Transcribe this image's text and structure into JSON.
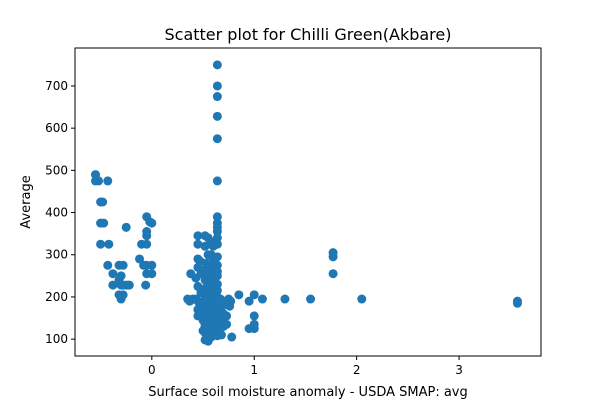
{
  "chart_data": {
    "type": "scatter",
    "title": "Scatter plot for Chilli Green(Akbare)",
    "xlabel": "Surface soil moisture anomaly  - USDA SMAP: avg",
    "ylabel": "Average",
    "xlim": [
      -0.75,
      3.8
    ],
    "ylim": [
      60,
      790
    ],
    "xticks": [
      0,
      1,
      2,
      3
    ],
    "yticks": [
      100,
      200,
      300,
      400,
      500,
      600,
      700
    ],
    "grid": false,
    "color": "#1f77b4",
    "points": [
      {
        "x": -0.55,
        "y": 490
      },
      {
        "x": -0.55,
        "y": 475
      },
      {
        "x": -0.52,
        "y": 475
      },
      {
        "x": -0.43,
        "y": 475
      },
      {
        "x": -0.5,
        "y": 425
      },
      {
        "x": -0.48,
        "y": 425
      },
      {
        "x": -0.5,
        "y": 375
      },
      {
        "x": -0.47,
        "y": 375
      },
      {
        "x": -0.5,
        "y": 325
      },
      {
        "x": -0.42,
        "y": 325
      },
      {
        "x": -0.43,
        "y": 275
      },
      {
        "x": -0.38,
        "y": 255
      },
      {
        "x": -0.38,
        "y": 228
      },
      {
        "x": -0.3,
        "y": 228
      },
      {
        "x": -0.32,
        "y": 275
      },
      {
        "x": -0.28,
        "y": 275
      },
      {
        "x": -0.3,
        "y": 250
      },
      {
        "x": -0.32,
        "y": 240
      },
      {
        "x": -0.28,
        "y": 228
      },
      {
        "x": -0.25,
        "y": 228
      },
      {
        "x": -0.32,
        "y": 205
      },
      {
        "x": -0.3,
        "y": 195
      },
      {
        "x": -0.28,
        "y": 205
      },
      {
        "x": -0.25,
        "y": 365
      },
      {
        "x": -0.22,
        "y": 228
      },
      {
        "x": -0.12,
        "y": 290
      },
      {
        "x": -0.1,
        "y": 325
      },
      {
        "x": -0.05,
        "y": 325
      },
      {
        "x": -0.05,
        "y": 390
      },
      {
        "x": -0.02,
        "y": 378
      },
      {
        "x": 0.0,
        "y": 375
      },
      {
        "x": -0.05,
        "y": 355
      },
      {
        "x": -0.05,
        "y": 345
      },
      {
        "x": -0.08,
        "y": 275
      },
      {
        "x": -0.05,
        "y": 275
      },
      {
        "x": 0.0,
        "y": 275
      },
      {
        "x": -0.05,
        "y": 255
      },
      {
        "x": 0.0,
        "y": 255
      },
      {
        "x": -0.06,
        "y": 228
      },
      {
        "x": 0.35,
        "y": 195
      },
      {
        "x": 0.37,
        "y": 190
      },
      {
        "x": 0.4,
        "y": 195
      },
      {
        "x": 0.43,
        "y": 195
      },
      {
        "x": 0.38,
        "y": 255
      },
      {
        "x": 0.43,
        "y": 245
      },
      {
        "x": 0.45,
        "y": 345
      },
      {
        "x": 0.45,
        "y": 325
      },
      {
        "x": 0.45,
        "y": 290
      },
      {
        "x": 0.47,
        "y": 285
      },
      {
        "x": 0.45,
        "y": 270
      },
      {
        "x": 0.48,
        "y": 255
      },
      {
        "x": 0.45,
        "y": 225
      },
      {
        "x": 0.48,
        "y": 210
      },
      {
        "x": 0.45,
        "y": 190
      },
      {
        "x": 0.47,
        "y": 180
      },
      {
        "x": 0.45,
        "y": 170
      },
      {
        "x": 0.48,
        "y": 158
      },
      {
        "x": 0.45,
        "y": 155
      },
      {
        "x": 0.5,
        "y": 145
      },
      {
        "x": 0.52,
        "y": 130
      },
      {
        "x": 0.5,
        "y": 120
      },
      {
        "x": 0.52,
        "y": 345
      },
      {
        "x": 0.55,
        "y": 340
      },
      {
        "x": 0.52,
        "y": 320
      },
      {
        "x": 0.55,
        "y": 300
      },
      {
        "x": 0.53,
        "y": 280
      },
      {
        "x": 0.52,
        "y": 265
      },
      {
        "x": 0.55,
        "y": 255
      },
      {
        "x": 0.52,
        "y": 240
      },
      {
        "x": 0.55,
        "y": 230
      },
      {
        "x": 0.52,
        "y": 220
      },
      {
        "x": 0.55,
        "y": 205
      },
      {
        "x": 0.52,
        "y": 195
      },
      {
        "x": 0.55,
        "y": 185
      },
      {
        "x": 0.52,
        "y": 175
      },
      {
        "x": 0.55,
        "y": 165
      },
      {
        "x": 0.52,
        "y": 155
      },
      {
        "x": 0.55,
        "y": 145
      },
      {
        "x": 0.52,
        "y": 135
      },
      {
        "x": 0.55,
        "y": 125
      },
      {
        "x": 0.52,
        "y": 115
      },
      {
        "x": 0.55,
        "y": 105
      },
      {
        "x": 0.52,
        "y": 98
      },
      {
        "x": 0.55,
        "y": 95
      },
      {
        "x": 0.58,
        "y": 330
      },
      {
        "x": 0.6,
        "y": 320
      },
      {
        "x": 0.58,
        "y": 300
      },
      {
        "x": 0.6,
        "y": 290
      },
      {
        "x": 0.58,
        "y": 275
      },
      {
        "x": 0.6,
        "y": 260
      },
      {
        "x": 0.58,
        "y": 245
      },
      {
        "x": 0.6,
        "y": 235
      },
      {
        "x": 0.58,
        "y": 225
      },
      {
        "x": 0.6,
        "y": 215
      },
      {
        "x": 0.58,
        "y": 205
      },
      {
        "x": 0.6,
        "y": 195
      },
      {
        "x": 0.58,
        "y": 185
      },
      {
        "x": 0.6,
        "y": 175
      },
      {
        "x": 0.58,
        "y": 165
      },
      {
        "x": 0.6,
        "y": 155
      },
      {
        "x": 0.58,
        "y": 145
      },
      {
        "x": 0.6,
        "y": 135
      },
      {
        "x": 0.58,
        "y": 125
      },
      {
        "x": 0.6,
        "y": 115
      },
      {
        "x": 0.58,
        "y": 105
      },
      {
        "x": 0.64,
        "y": 750
      },
      {
        "x": 0.64,
        "y": 700
      },
      {
        "x": 0.64,
        "y": 675
      },
      {
        "x": 0.64,
        "y": 628
      },
      {
        "x": 0.64,
        "y": 575
      },
      {
        "x": 0.64,
        "y": 475
      },
      {
        "x": 0.64,
        "y": 390
      },
      {
        "x": 0.64,
        "y": 375
      },
      {
        "x": 0.64,
        "y": 365
      },
      {
        "x": 0.64,
        "y": 355
      },
      {
        "x": 0.64,
        "y": 340
      },
      {
        "x": 0.64,
        "y": 325
      },
      {
        "x": 0.64,
        "y": 295
      },
      {
        "x": 0.64,
        "y": 275
      },
      {
        "x": 0.64,
        "y": 260
      },
      {
        "x": 0.64,
        "y": 250
      },
      {
        "x": 0.64,
        "y": 230
      },
      {
        "x": 0.64,
        "y": 215
      },
      {
        "x": 0.64,
        "y": 200
      },
      {
        "x": 0.64,
        "y": 190
      },
      {
        "x": 0.64,
        "y": 180
      },
      {
        "x": 0.64,
        "y": 170
      },
      {
        "x": 0.64,
        "y": 160
      },
      {
        "x": 0.64,
        "y": 148
      },
      {
        "x": 0.64,
        "y": 138
      },
      {
        "x": 0.64,
        "y": 128
      },
      {
        "x": 0.64,
        "y": 118
      },
      {
        "x": 0.64,
        "y": 108
      },
      {
        "x": 0.67,
        "y": 195
      },
      {
        "x": 0.68,
        "y": 175
      },
      {
        "x": 0.7,
        "y": 160
      },
      {
        "x": 0.68,
        "y": 145
      },
      {
        "x": 0.7,
        "y": 130
      },
      {
        "x": 0.68,
        "y": 110
      },
      {
        "x": 0.72,
        "y": 190
      },
      {
        "x": 0.73,
        "y": 155
      },
      {
        "x": 0.73,
        "y": 135
      },
      {
        "x": 0.75,
        "y": 195
      },
      {
        "x": 0.77,
        "y": 190
      },
      {
        "x": 0.76,
        "y": 178
      },
      {
        "x": 0.78,
        "y": 105
      },
      {
        "x": 0.85,
        "y": 205
      },
      {
        "x": 0.95,
        "y": 190
      },
      {
        "x": 0.95,
        "y": 125
      },
      {
        "x": 1.0,
        "y": 205
      },
      {
        "x": 1.0,
        "y": 155
      },
      {
        "x": 1.0,
        "y": 135
      },
      {
        "x": 1.0,
        "y": 125
      },
      {
        "x": 1.08,
        "y": 195
      },
      {
        "x": 1.3,
        "y": 195
      },
      {
        "x": 1.55,
        "y": 195
      },
      {
        "x": 1.77,
        "y": 305
      },
      {
        "x": 1.77,
        "y": 295
      },
      {
        "x": 1.77,
        "y": 255
      },
      {
        "x": 2.05,
        "y": 195
      },
      {
        "x": 3.57,
        "y": 190
      },
      {
        "x": 3.57,
        "y": 185
      }
    ]
  }
}
